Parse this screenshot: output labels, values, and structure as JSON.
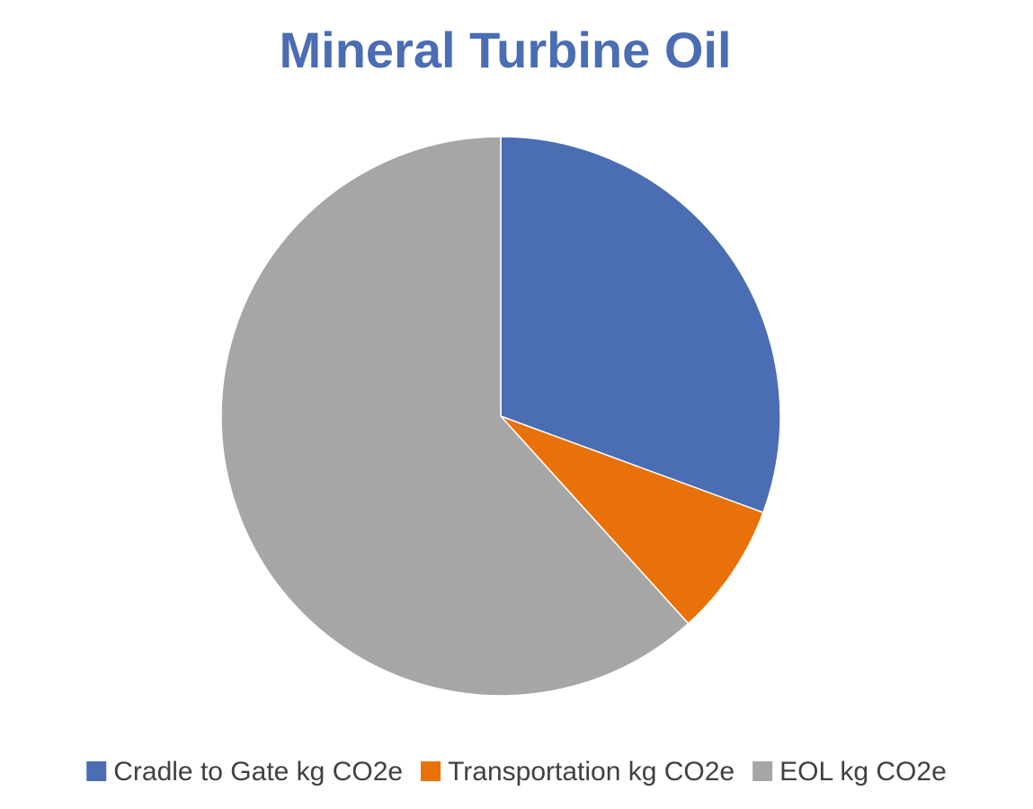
{
  "chart_data": {
    "type": "pie",
    "title": "Mineral Turbine Oil",
    "categories": [
      "Cradle to Gate kg CO2e",
      "Transportation kg CO2e",
      "EOL kg CO2e"
    ],
    "values": [
      30.6,
      7.7,
      61.7
    ],
    "colors": [
      "#4a6db3",
      "#e8710a",
      "#a6a6a6"
    ],
    "legend": "bottom"
  }
}
